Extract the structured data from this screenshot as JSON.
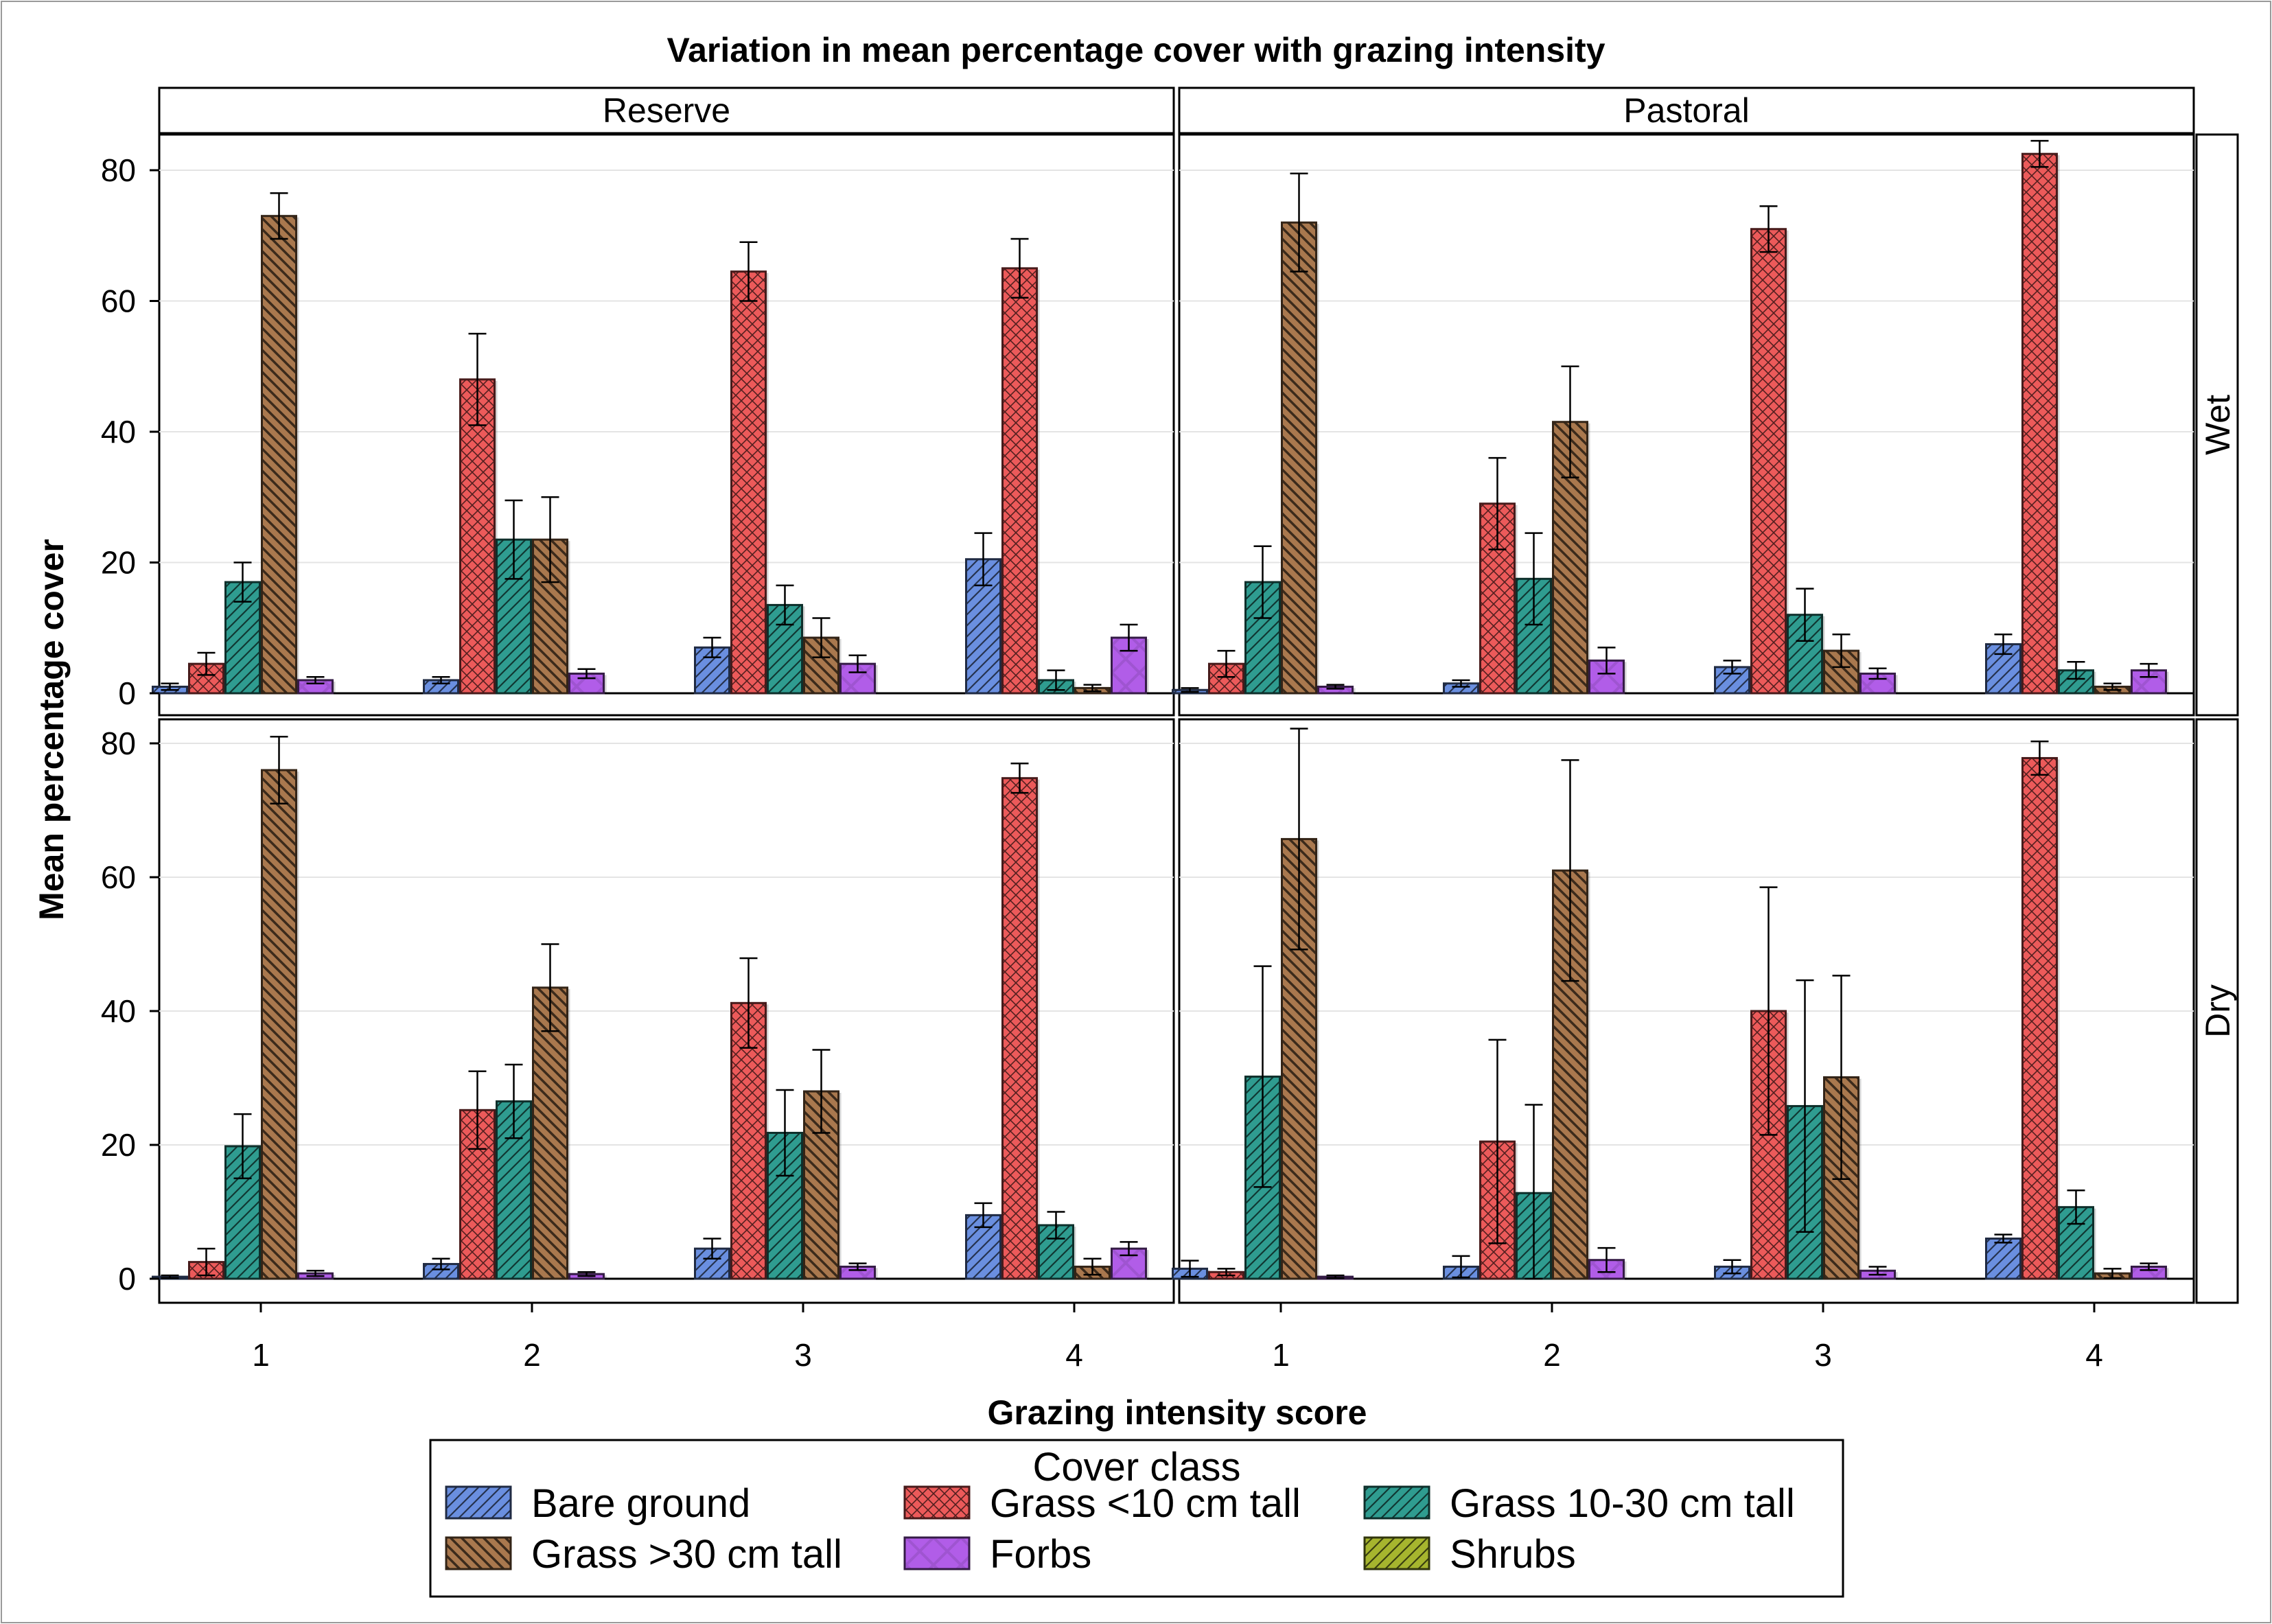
{
  "chart_data": {
    "type": "bar",
    "title": "Variation in mean percentage cover with grazing intensity",
    "xlabel": "Grazing intensity score",
    "ylabel": "Mean percentage cover",
    "ylim": [
      0,
      85
    ],
    "yticks": [
      0,
      20,
      40,
      60,
      80
    ],
    "categories": [
      "1",
      "2",
      "3",
      "4"
    ],
    "legend": {
      "title": "Cover class",
      "position": "bottom",
      "items": [
        "Bare ground",
        "Grass <10 cm tall",
        "Grass 10-30 cm tall",
        "Grass >30 cm tall",
        "Forbs",
        "Shrubs"
      ]
    },
    "column_labels": [
      "Reserve",
      "Pastoral"
    ],
    "row_labels": [
      "Wet",
      "Dry"
    ],
    "series_styles": [
      {
        "name": "Bare ground",
        "color": "#6a8fe0",
        "pattern": "diagonal"
      },
      {
        "name": "Grass <10 cm tall",
        "color": "#ec5a5a",
        "pattern": "crosshatch"
      },
      {
        "name": "Grass 10-30 cm tall",
        "color": "#2f9c90",
        "pattern": "diagonal"
      },
      {
        "name": "Grass >30 cm tall",
        "color": "#a9784e",
        "pattern": "backdiagonal"
      },
      {
        "name": "Forbs",
        "color": "#b15de8",
        "pattern": "cross"
      },
      {
        "name": "Shrubs",
        "color": "#a6b52e",
        "pattern": "diagonal"
      }
    ],
    "panels": [
      {
        "column": "Reserve",
        "row": "Wet",
        "series": [
          {
            "name": "Bare ground",
            "values": [
              1,
              2,
              7,
              20.5
            ],
            "errors": [
              0.5,
              0.5,
              1.5,
              4
            ]
          },
          {
            "name": "Grass <10 cm tall",
            "values": [
              4.5,
              48,
              64.5,
              65
            ],
            "errors": [
              1.7,
              7,
              4.5,
              4.5
            ]
          },
          {
            "name": "Grass 10-30 cm tall",
            "values": [
              17,
              23.5,
              13.5,
              2
            ],
            "errors": [
              3,
              6,
              3,
              1.5
            ]
          },
          {
            "name": "Grass >30 cm tall",
            "values": [
              73,
              23.5,
              8.5,
              0.8
            ],
            "errors": [
              3.5,
              6.5,
              3,
              0.5
            ]
          },
          {
            "name": "Forbs",
            "values": [
              2,
              3,
              4.5,
              8.5
            ],
            "errors": [
              0.5,
              0.7,
              1.3,
              2
            ]
          },
          {
            "name": "Shrubs",
            "values": [
              0,
              0,
              0,
              0
            ],
            "errors": [
              0,
              0,
              0,
              0
            ]
          }
        ]
      },
      {
        "column": "Pastoral",
        "row": "Wet",
        "series": [
          {
            "name": "Bare ground",
            "values": [
              0.5,
              1.5,
              4,
              7.5
            ],
            "errors": [
              0.3,
              0.5,
              1,
              1.5
            ]
          },
          {
            "name": "Grass <10 cm tall",
            "values": [
              4.5,
              29,
              71,
              82.5
            ],
            "errors": [
              2,
              7,
              3.5,
              2
            ]
          },
          {
            "name": "Grass 10-30 cm tall",
            "values": [
              17,
              17.5,
              12,
              3.5
            ],
            "errors": [
              5.5,
              7,
              4,
              1.3
            ]
          },
          {
            "name": "Grass >30 cm tall",
            "values": [
              72,
              41.5,
              6.5,
              1
            ],
            "errors": [
              7.5,
              8.5,
              2.5,
              0.5
            ]
          },
          {
            "name": "Forbs",
            "values": [
              1,
              5,
              3,
              3.5
            ],
            "errors": [
              0.3,
              2,
              0.8,
              1
            ]
          },
          {
            "name": "Shrubs",
            "values": [
              0,
              0,
              0,
              0
            ],
            "errors": [
              0,
              0,
              0,
              0
            ]
          }
        ]
      },
      {
        "column": "Reserve",
        "row": "Dry",
        "series": [
          {
            "name": "Bare ground",
            "values": [
              0.3,
              2.2,
              4.5,
              9.5
            ],
            "errors": [
              0.2,
              0.8,
              1.5,
              1.8
            ]
          },
          {
            "name": "Grass <10 cm tall",
            "values": [
              2.5,
              25.2,
              41.2,
              74.8
            ],
            "errors": [
              2,
              5.8,
              6.7,
              2.2
            ]
          },
          {
            "name": "Grass 10-30 cm tall",
            "values": [
              19.8,
              26.5,
              21.8,
              8
            ],
            "errors": [
              4.8,
              5.5,
              6.4,
              2
            ]
          },
          {
            "name": "Grass >30 cm tall",
            "values": [
              76,
              43.5,
              28,
              1.8
            ],
            "errors": [
              5,
              6.5,
              6.2,
              1.2
            ]
          },
          {
            "name": "Forbs",
            "values": [
              0.8,
              0.7,
              1.8,
              4.5
            ],
            "errors": [
              0.4,
              0.3,
              0.5,
              1
            ]
          },
          {
            "name": "Shrubs",
            "values": [
              0,
              0,
              0,
              0
            ],
            "errors": [
              0,
              0,
              0,
              0
            ]
          }
        ]
      },
      {
        "column": "Pastoral",
        "row": "Dry",
        "series": [
          {
            "name": "Bare ground",
            "values": [
              1.5,
              1.8,
              1.8,
              6
            ],
            "errors": [
              1.2,
              1.6,
              1,
              0.6
            ]
          },
          {
            "name": "Grass <10 cm tall",
            "values": [
              1,
              20.5,
              40,
              77.8
            ],
            "errors": [
              0.5,
              15.2,
              18.5,
              2.5
            ]
          },
          {
            "name": "Grass 10-30 cm tall",
            "values": [
              30.2,
              12.8,
              25.8,
              10.7
            ],
            "errors": [
              16.5,
              13.2,
              18.8,
              2.5
            ]
          },
          {
            "name": "Grass >30 cm tall",
            "values": [
              65.7,
              61,
              30.1,
              0.8
            ],
            "errors": [
              16.5,
              16.5,
              15.2,
              0.7
            ]
          },
          {
            "name": "Forbs",
            "values": [
              0.3,
              2.8,
              1.2,
              1.8
            ],
            "errors": [
              0.2,
              1.8,
              0.6,
              0.5
            ]
          },
          {
            "name": "Shrubs",
            "values": [
              0,
              0,
              0,
              0
            ],
            "errors": [
              0,
              0,
              0,
              0
            ]
          }
        ]
      }
    ]
  }
}
